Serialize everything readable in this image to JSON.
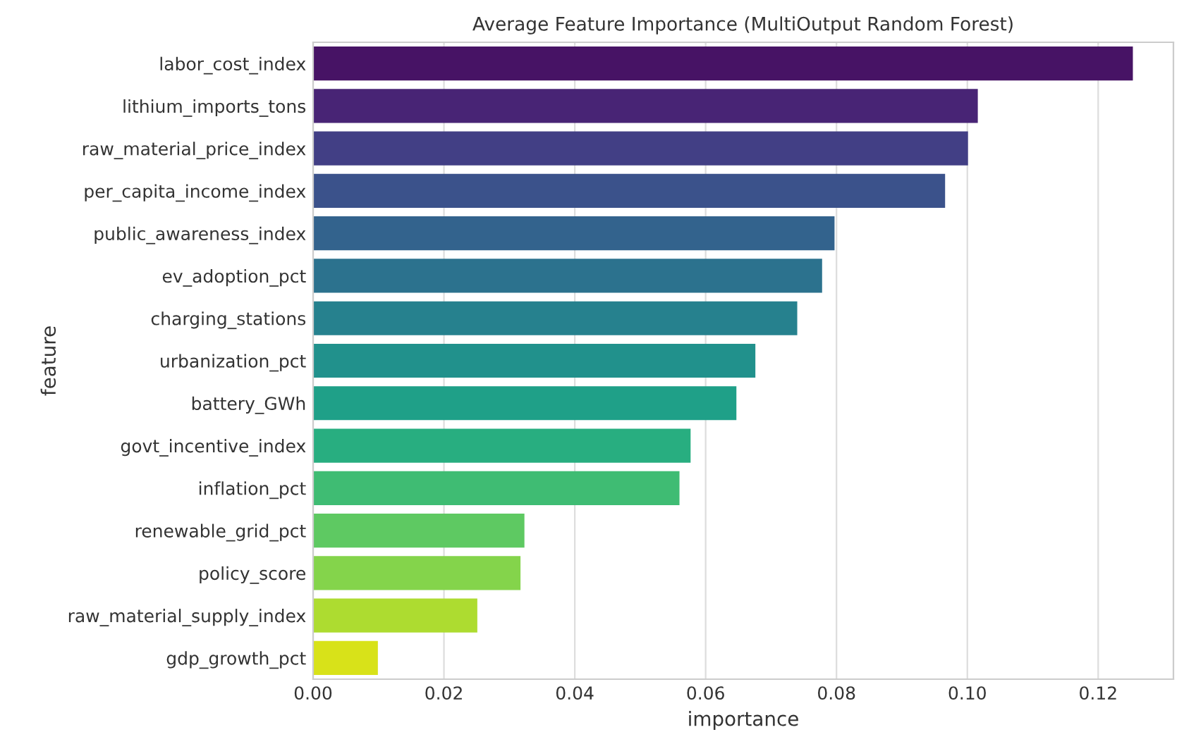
{
  "chart_data": {
    "type": "bar",
    "orientation": "horizontal",
    "title": "Average Feature Importance (MultiOutput Random Forest)",
    "xlabel": "importance",
    "ylabel": "feature",
    "categories": [
      "labor_cost_index",
      "lithium_imports_tons",
      "raw_material_price_index",
      "per_capita_income_index",
      "public_awareness_index",
      "ev_adoption_pct",
      "charging_stations",
      "urbanization_pct",
      "battery_GWh",
      "govt_incentive_index",
      "inflation_pct",
      "renewable_grid_pct",
      "policy_score",
      "raw_material_supply_index",
      "gdp_growth_pct"
    ],
    "values": [
      0.1253,
      0.1016,
      0.1001,
      0.0966,
      0.0797,
      0.0778,
      0.074,
      0.0676,
      0.0647,
      0.0577,
      0.056,
      0.0323,
      0.0317,
      0.0251,
      0.0099
    ],
    "colors": [
      "#471365",
      "#482475",
      "#423f85",
      "#3b528b",
      "#33638d",
      "#2c728e",
      "#26818e",
      "#21918c",
      "#1fa088",
      "#28ae80",
      "#3fbc73",
      "#5ec962",
      "#84d44b",
      "#addc30",
      "#d8e219"
    ],
    "xlim": [
      0,
      0.1315
    ],
    "xticks": [
      {
        "value": 0,
        "label": "0.00"
      },
      {
        "value": 0.02,
        "label": "0.02"
      },
      {
        "value": 0.04,
        "label": "0.04"
      },
      {
        "value": 0.06,
        "label": "0.06"
      },
      {
        "value": 0.08,
        "label": "0.08"
      },
      {
        "value": 0.1,
        "label": "0.10"
      },
      {
        "value": 0.12,
        "label": "0.12"
      }
    ],
    "grid": "x"
  }
}
